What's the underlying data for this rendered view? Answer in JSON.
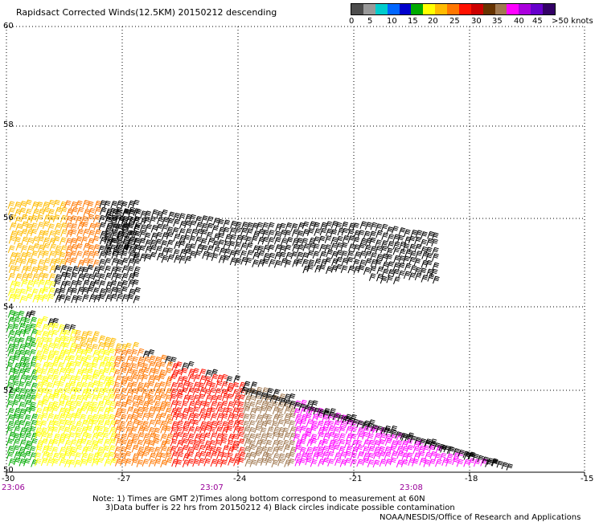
{
  "header": {
    "title": "Rapidsact Corrected Winds(12.5KM) 20150212 descending"
  },
  "scale": {
    "colors": [
      "#4d4d4d",
      "#999999",
      "#00cccc",
      "#0066ff",
      "#0000cc",
      "#00aa00",
      "#ffff00",
      "#ffbb00",
      "#ff7700",
      "#ff1100",
      "#cc0000",
      "#663300",
      "#a07850",
      "#ff00ff",
      "#aa00dd",
      "#6600cc",
      "#330066"
    ],
    "labels": [
      "0",
      "5",
      "10",
      "15",
      "20",
      "25",
      "30",
      "35",
      "40",
      "45",
      ">50 knots"
    ]
  },
  "axes": {
    "lat_labels": [
      "60",
      "58",
      "56",
      "54",
      "52",
      "50"
    ],
    "lon_labels": [
      "-30",
      "-27",
      "-24",
      "-21",
      "-18",
      "-15"
    ],
    "time_labels": [
      "23:06",
      "23:07",
      "23:08"
    ]
  },
  "notes": {
    "line1": "Note: 1) Times are GMT 2)Times along bottom correspond to measurement at 60N",
    "line2": "3)Data buffer is 22 hrs from 20150212 4) Black circles indicate possible contamination"
  },
  "credit": "NOAA/NESDIS/Office of Research and Applications"
}
